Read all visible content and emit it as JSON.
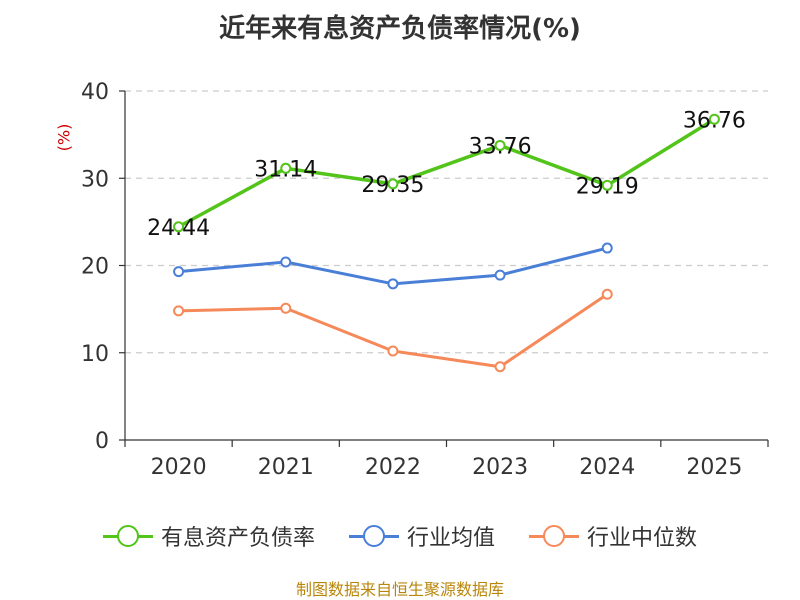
{
  "chart_data": {
    "type": "line",
    "title": "近年来有息资产负债率情况(%)",
    "ylabel": "(%)",
    "categories": [
      "2020",
      "2021",
      "2022",
      "2023",
      "2024",
      "2025"
    ],
    "y_ticks": [
      "0",
      "10",
      "20",
      "30",
      "40"
    ],
    "ylim": [
      0,
      40
    ],
    "grid": true,
    "legend_position": "bottom",
    "series": [
      {
        "name": "有息资产负债率",
        "color": "#52c41a",
        "values": [
          24.44,
          31.14,
          29.35,
          33.76,
          29.19,
          36.76
        ],
        "labels": [
          "24.44",
          "31.14",
          "29.35",
          "33.76",
          "29.19",
          "36.76"
        ]
      },
      {
        "name": "行业均值",
        "color": "#4a7fd8",
        "values": [
          19.3,
          20.4,
          17.9,
          18.9,
          22.0,
          null
        ]
      },
      {
        "name": "行业中位数",
        "color": "#f5895a",
        "values": [
          14.8,
          15.1,
          10.2,
          8.4,
          16.7,
          null
        ]
      }
    ],
    "source": "制图数据来自恒生聚源数据库"
  }
}
